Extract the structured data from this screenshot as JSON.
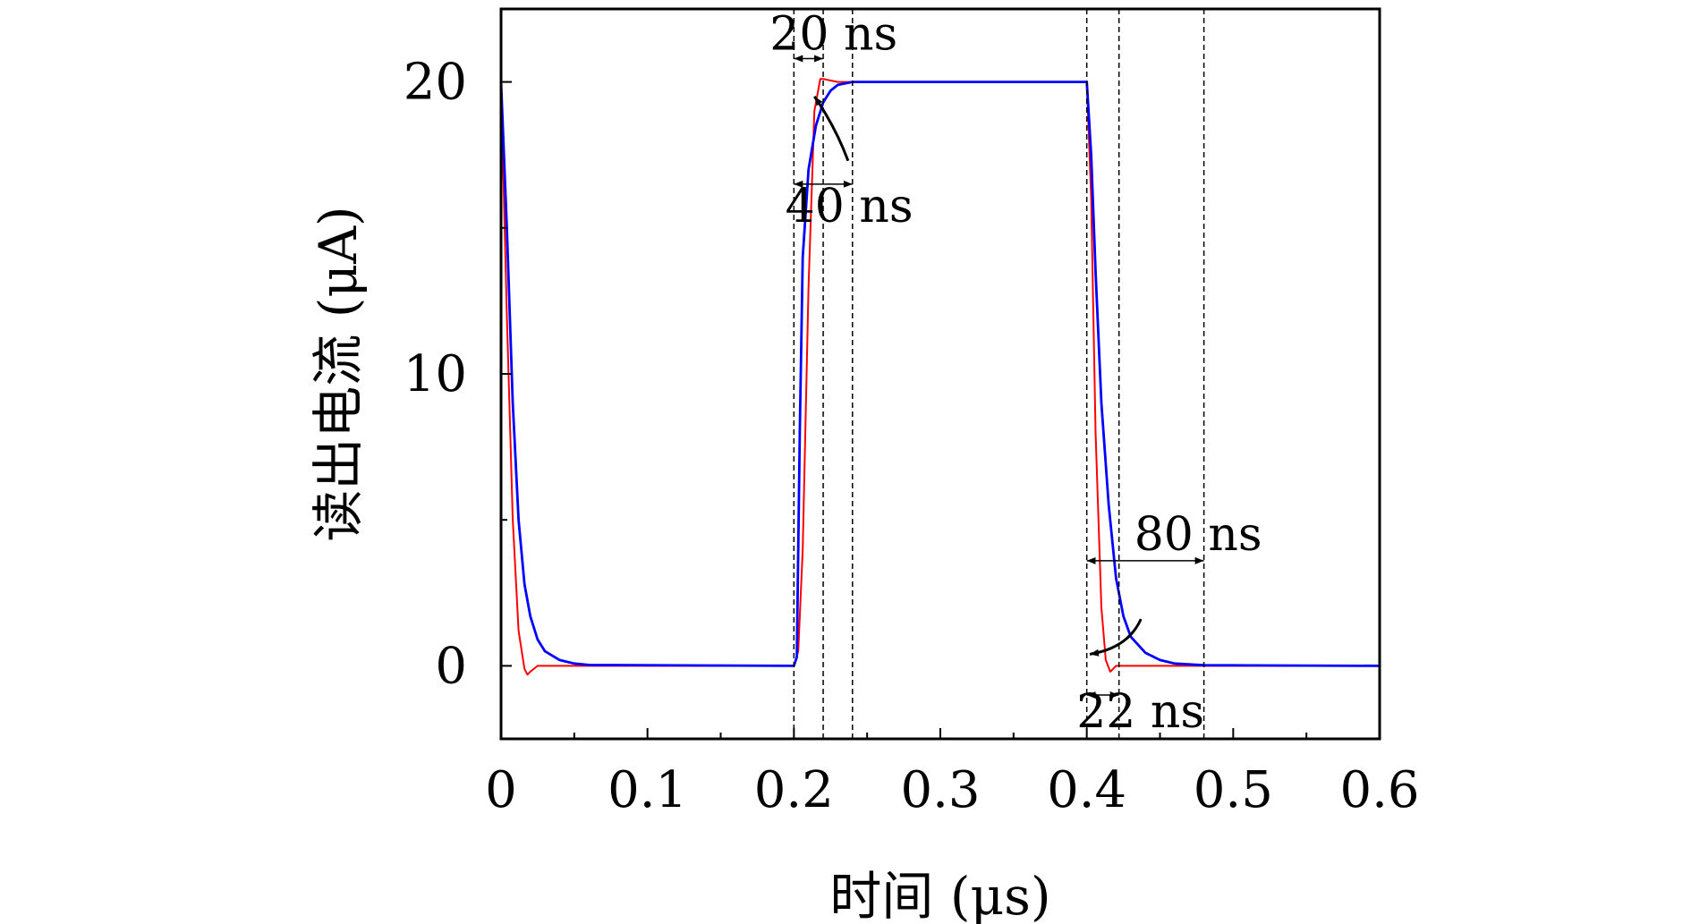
{
  "chart_data": {
    "type": "line",
    "title": "",
    "xlabel": "时间 (μs)",
    "ylabel": "读出电流 (μA)",
    "xlim": [
      0,
      0.6
    ],
    "ylim": [
      -2.5,
      22.5
    ],
    "xticks": [
      0,
      0.1,
      0.2,
      0.3,
      0.4,
      0.5,
      0.6
    ],
    "xtick_labels": [
      "0",
      "0.1",
      "0.2",
      "0.3",
      "0.4",
      "0.5",
      "0.6"
    ],
    "yticks": [
      0,
      10,
      20
    ],
    "ytick_labels": [
      "0",
      "10",
      "20"
    ],
    "grid": false,
    "series": [
      {
        "color": "#ff0000",
        "x": [
          0,
          0.004,
          0.008,
          0.012,
          0.016,
          0.018,
          0.02,
          0.025,
          0.03,
          0.2,
          0.203,
          0.206,
          0.21,
          0.214,
          0.218,
          0.22,
          0.23,
          0.4,
          0.403,
          0.406,
          0.41,
          0.413,
          0.416,
          0.42,
          0.43,
          0.6
        ],
        "y": [
          20,
          12,
          5,
          1.2,
          -0.1,
          -0.3,
          -0.2,
          0,
          0,
          0,
          0.5,
          4,
          13,
          19,
          20.1,
          20.1,
          20,
          20,
          16,
          8,
          2,
          0.2,
          -0.2,
          0,
          0,
          0
        ]
      },
      {
        "color": "#0000ff",
        "x": [
          0,
          0.004,
          0.008,
          0.012,
          0.016,
          0.02,
          0.025,
          0.03,
          0.04,
          0.05,
          0.06,
          0.2,
          0.202,
          0.204,
          0.206,
          0.21,
          0.215,
          0.22,
          0.225,
          0.23,
          0.24,
          0.25,
          0.26,
          0.4,
          0.403,
          0.406,
          0.41,
          0.415,
          0.42,
          0.425,
          0.43,
          0.44,
          0.45,
          0.46,
          0.48,
          0.6
        ],
        "y": [
          20,
          15,
          9,
          5,
          2.8,
          1.7,
          0.9,
          0.5,
          0.2,
          0.08,
          0.03,
          0,
          0.3,
          8,
          14,
          17,
          18.5,
          19.3,
          19.7,
          19.9,
          20,
          20,
          20,
          20,
          17.5,
          13.5,
          9,
          5.5,
          3,
          1.7,
          1,
          0.45,
          0.2,
          0.08,
          0.02,
          0
        ]
      }
    ],
    "vlines": [
      0.2,
      0.22,
      0.24,
      0.4,
      0.422,
      0.48
    ],
    "annotations": [
      {
        "text": "20 ns",
        "x1": 0.2,
        "x2": 0.22,
        "y": 20.8
      },
      {
        "text": "40 ns",
        "x1": 0.2,
        "x2": 0.24,
        "y": 16.5
      },
      {
        "text": "80 ns",
        "x1": 0.4,
        "x2": 0.48,
        "y": 3.6
      },
      {
        "text": "22 ns",
        "x1": 0.4,
        "x2": 0.422,
        "y": -1
      }
    ]
  }
}
